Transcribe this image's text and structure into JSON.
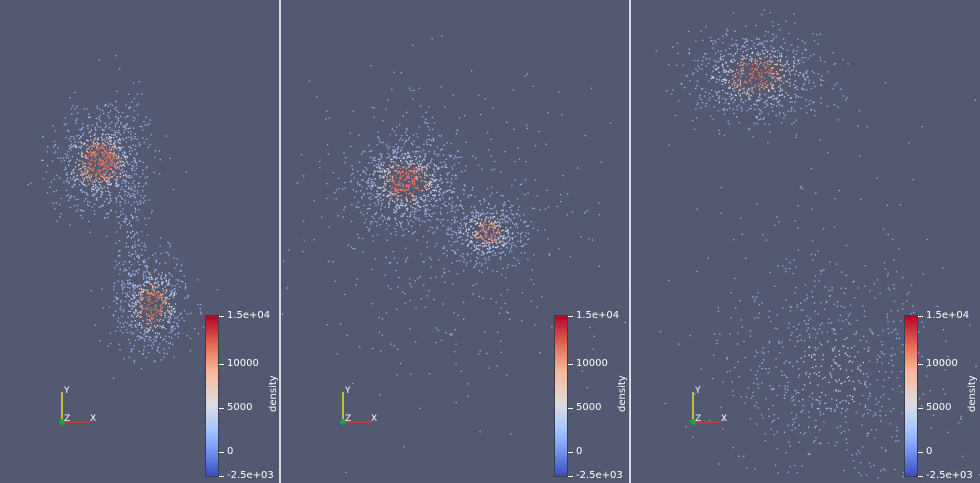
{
  "colorbar": {
    "title": "density",
    "ticks": [
      "1.5e+04",
      "10000",
      "5000",
      "0",
      "-2.5e+03"
    ],
    "colors": [
      "#b40426",
      "#e7745b",
      "#dddcdc",
      "#7b9ff9",
      "#3b4cc0"
    ]
  },
  "orientation_axes": {
    "x": "X",
    "y": "Y",
    "z": "Z",
    "x_color": "#e03030",
    "y_color": "#e8e020",
    "z_color": "#20a040"
  },
  "views": [
    {
      "id": "view-1",
      "description_icon": "particle-cloud"
    },
    {
      "id": "view-2",
      "description_icon": "particle-cloud"
    },
    {
      "id": "view-3",
      "description_icon": "particle-cloud"
    }
  ],
  "background_color": "#525970"
}
